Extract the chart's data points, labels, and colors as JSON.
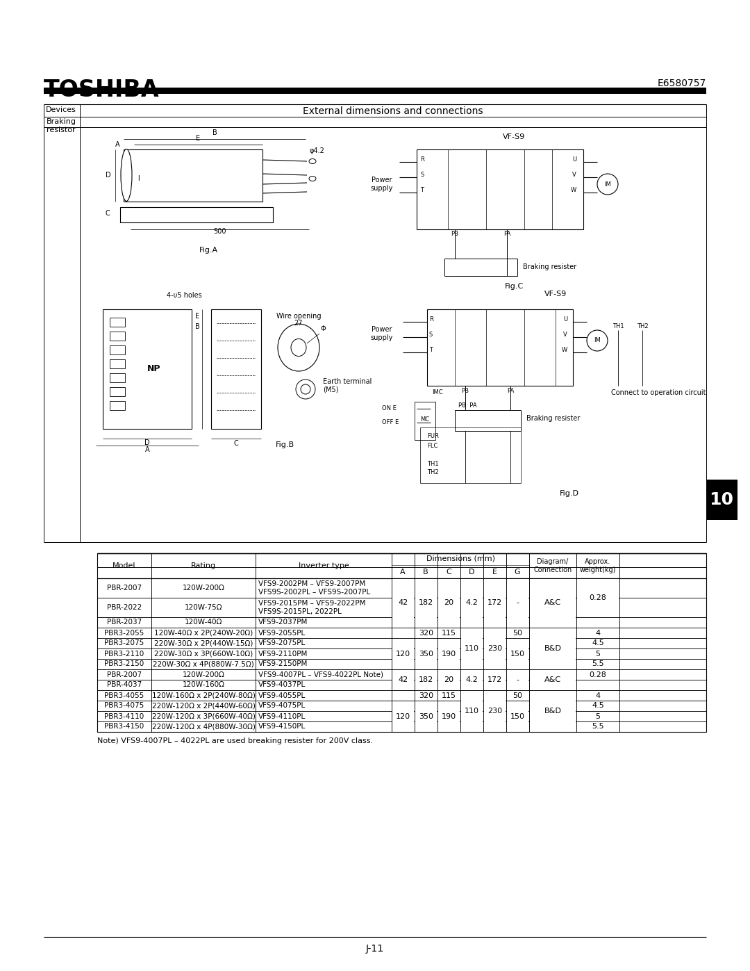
{
  "title_logo": "TOSHIBA",
  "doc_number": "E6580757",
  "section_label": "Devices",
  "section_title": "External dimensions and connections",
  "subsection": "Braking\nresistor",
  "fig_a_label": "Fig.A",
  "fig_b_label": "Fig.B",
  "fig_c_label": "Fig.C",
  "fig_d_label": "Fig.D",
  "vfs9_label": "VF-S9",
  "table_rows": [
    [
      "PBR-2007",
      "120W-200Ω",
      "VFS9-2002PM – VFS9-2007PM\nVFS9S-2002PL – VFS9S-2007PL",
      "42",
      "182",
      "20",
      "4.2",
      "172",
      "-",
      "A&C",
      "0.28"
    ],
    [
      "PBR-2022",
      "120W-75Ω",
      "VFS9-2015PM – VFS9-2022PM\nVFS9S-2015PL, 2022PL",
      "42",
      "182",
      "20",
      "4.2",
      "172",
      "-",
      "A&C",
      "0.28"
    ],
    [
      "PBR-2037",
      "120W-40Ω",
      "VFS9-2037PM",
      "",
      "",
      "",
      "",
      "",
      "",
      "",
      ""
    ],
    [
      "PBR3-2055",
      "120W-40Ω x 2P(240W-20Ω)",
      "VFS9-2055PL",
      "",
      "320",
      "115",
      "",
      "",
      "50",
      "",
      "4"
    ],
    [
      "PBR3-2075",
      "220W-30Ω x 2P(440W-15Ω)",
      "VFS9-2075PL",
      "120",
      "350",
      "190",
      "110",
      "230",
      "150",
      "B&D",
      "4.5"
    ],
    [
      "PBR3-2110",
      "220W-30Ω x 3P(660W-10Ω)",
      "VFS9-2110PM",
      "120",
      "350",
      "190",
      "110",
      "230",
      "150",
      "B&D",
      "5"
    ],
    [
      "PBR3-2150",
      "220W-30Ω x 4P(880W-7.5Ω)",
      "VFS9-2150PM",
      "",
      "",
      "",
      "",
      "",
      "",
      "",
      "5.5"
    ],
    [
      "PBR-2007",
      "120W-200Ω",
      "VFS9-4007PL – VFS9-4022PL Note)",
      "42",
      "182",
      "20",
      "4.2",
      "172",
      "-",
      "A&C",
      "0.28"
    ],
    [
      "PBR-4037",
      "120W-160Ω",
      "VFS9-4037PL",
      "",
      "",
      "",
      "",
      "",
      "",
      "",
      ""
    ],
    [
      "PBR3-4055",
      "120W-160Ω x 2P(240W-80Ω)",
      "VFS9-4055PL",
      "",
      "320",
      "115",
      "",
      "",
      "50",
      "",
      "4"
    ],
    [
      "PBR3-4075",
      "220W-120Ω x 2P(440W-60Ω)",
      "VFS9-4075PL",
      "120",
      "350",
      "190",
      "110",
      "230",
      "150",
      "B&D",
      "4.5"
    ],
    [
      "PBR3-4110",
      "220W-120Ω x 3P(660W-40Ω)",
      "VFS9-4110PL",
      "120",
      "350",
      "190",
      "110",
      "230",
      "150",
      "B&D",
      "5"
    ],
    [
      "PBR3-4150",
      "220W-120Ω x 4P(880W-30Ω)",
      "VFS9-4150PL",
      "",
      "",
      "",
      "",
      "",
      "",
      "",
      "5.5"
    ]
  ],
  "note_text": "Note) VFS9-4007PL – 4022PL are used breaking resister for 200V class.",
  "page_label": "J-11",
  "chapter_label": "10"
}
